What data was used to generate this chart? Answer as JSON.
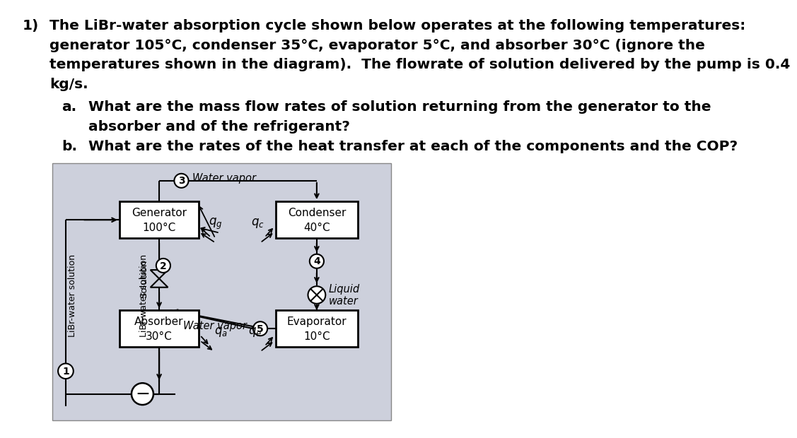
{
  "bg_color": "#ffffff",
  "diagram_bg": "#cdd0dc",
  "box_fill": "#ffffff",
  "box_edge": "#000000",
  "generator_label": "Generator\n100°C",
  "condenser_label": "Condenser\n40°C",
  "absorber_label": "Absorber\n30°C",
  "evaporator_label": "Evaporator\n10°C",
  "libr_label": "LiBr-water solution",
  "solution_label": "Solution",
  "water_vapor_top": "Water vapor",
  "water_vapor_mid": "Water vapor",
  "liquid_water": "Liquid\nwater",
  "text_line1": "The LiBr-water absorption cycle shown below operates at the following temperatures:",
  "text_line2": "generator 105°C, condenser 35°C, evaporator 5°C, and absorber 30°C (ignore the",
  "text_line3": "temperatures shown in the diagram).  The flowrate of solution delivered by the pump is 0.4",
  "text_line4": "kg/s.",
  "text_a1": "What are the mass flow rates of solution returning from the generator to the",
  "text_a2": "absorber and of the refrigerant?",
  "text_b": "What are the rates of the heat transfer at each of the components and the COP?"
}
